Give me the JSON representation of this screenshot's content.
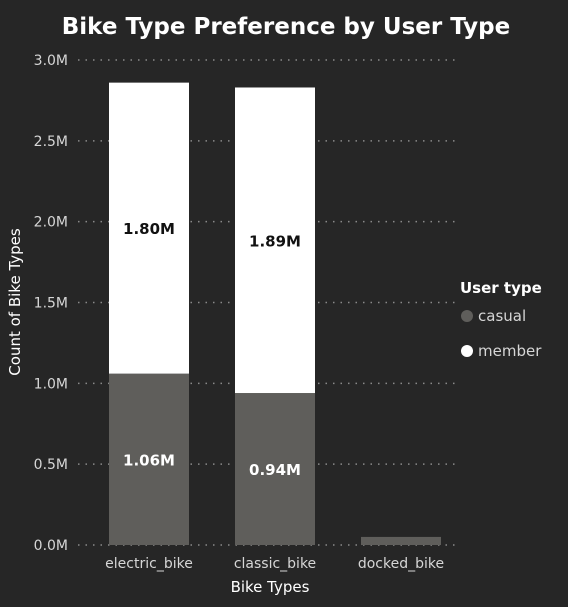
{
  "chart_data": {
    "type": "bar",
    "stacked": true,
    "title": "Bike Type Preference by User Type",
    "xlabel": "Bike Types",
    "ylabel": "Count of Bike Types",
    "categories": [
      "electric_bike",
      "classic_bike",
      "docked_bike"
    ],
    "series": [
      {
        "name": "casual",
        "color": "#5f5e5b",
        "values": [
          1.06,
          0.94,
          0.05
        ],
        "labels": [
          "1.06M",
          "0.94M",
          ""
        ]
      },
      {
        "name": "member",
        "color": "#ffffff",
        "values": [
          1.8,
          1.89,
          0
        ],
        "labels": [
          "1.80M",
          "1.89M",
          ""
        ]
      }
    ],
    "ylim": [
      0,
      3.0
    ],
    "yticks": [
      {
        "value": 0,
        "label": "0.0M"
      },
      {
        "value": 0.5,
        "label": "0.5M"
      },
      {
        "value": 1.0,
        "label": "1.0M"
      },
      {
        "value": 1.5,
        "label": "1.5M"
      },
      {
        "value": 2.0,
        "label": "2.0M"
      },
      {
        "value": 2.5,
        "label": "2.5M"
      },
      {
        "value": 3.0,
        "label": "3.0M"
      }
    ],
    "grid": true,
    "legend": {
      "title": "User type",
      "position": "right"
    }
  }
}
